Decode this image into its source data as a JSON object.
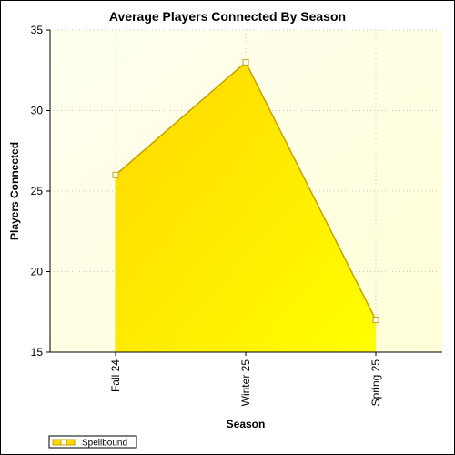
{
  "chart_data": {
    "type": "area",
    "title": "Average Players Connected By Season",
    "xlabel": "Season",
    "ylabel": "Players Connected",
    "categories": [
      "Fall 24",
      "Winter 25",
      "Spring 25"
    ],
    "series": [
      {
        "name": "Spellbound",
        "values": [
          26,
          33,
          17
        ]
      }
    ],
    "ylim": [
      15,
      35
    ],
    "yticks": [
      15,
      20,
      25,
      30,
      35
    ],
    "grid": true,
    "legend_position": "bottom-left",
    "colors": {
      "area_top": "#ffd700",
      "area_bottom": "#ffff00",
      "line": "#c8a000",
      "marker_fill": "#ffffff",
      "plot_bg_start": "#fffff0",
      "plot_bg_end": "#ffffd8",
      "grid": "#c8c8c8"
    }
  }
}
